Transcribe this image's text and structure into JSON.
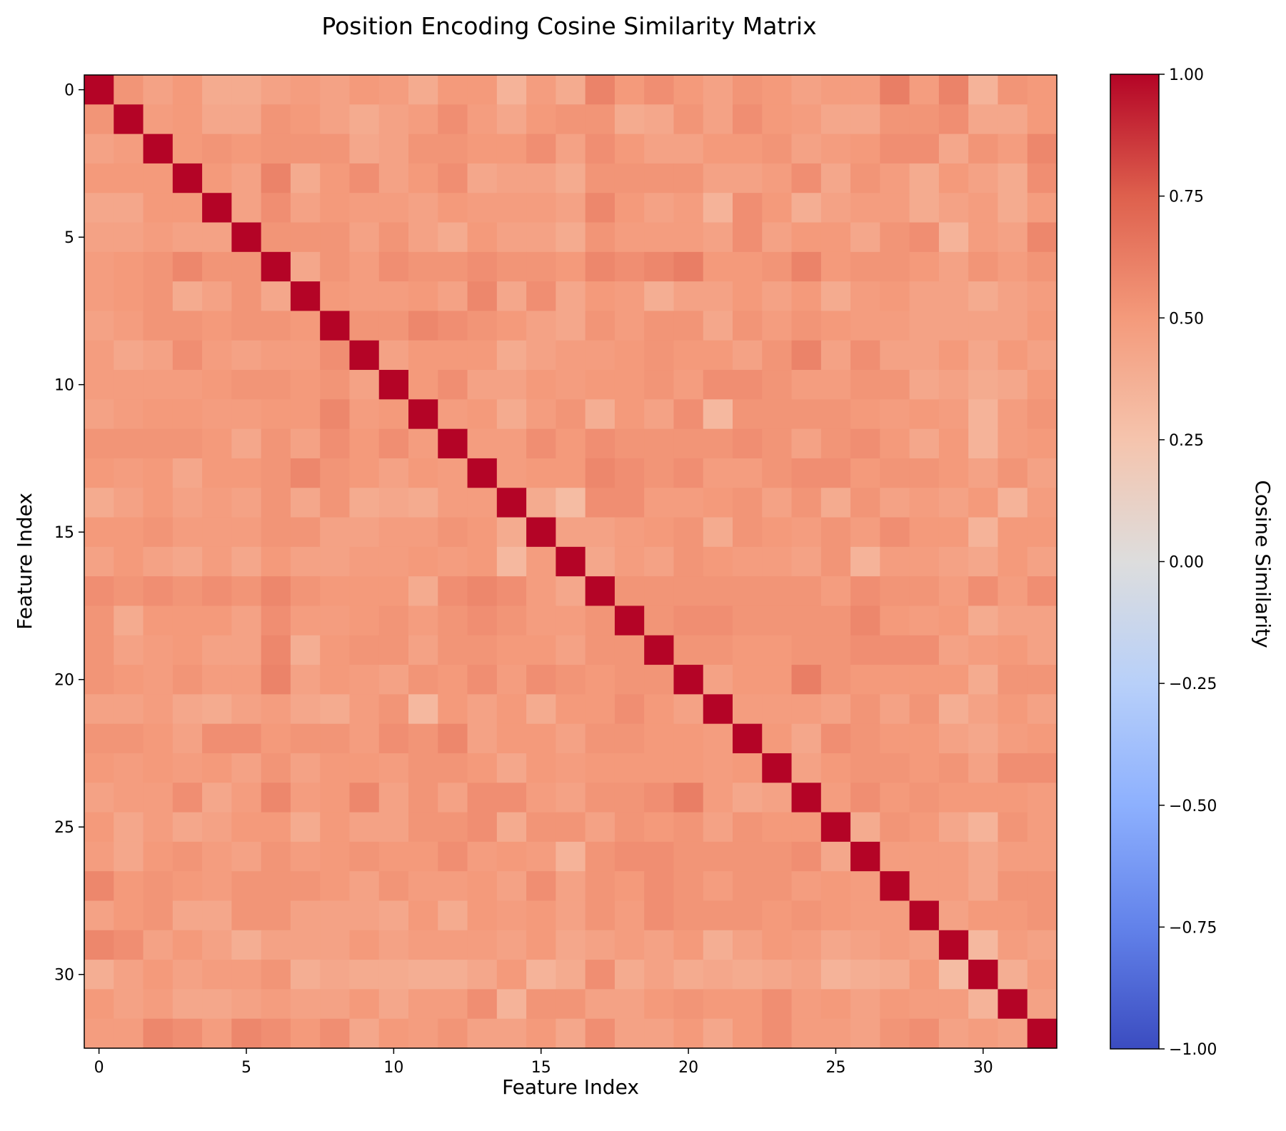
{
  "chart_data": {
    "type": "heatmap",
    "title": "Position Encoding Cosine Similarity Matrix",
    "xlabel": "Feature Index",
    "ylabel": "Feature Index",
    "n": 33,
    "x_ticks": [
      "0",
      "5",
      "10",
      "15",
      "20",
      "25",
      "30"
    ],
    "y_ticks": [
      "0",
      "5",
      "10",
      "15",
      "20",
      "25",
      "30"
    ],
    "x_tick_values": [
      0,
      5,
      10,
      15,
      20,
      25,
      30
    ],
    "y_tick_values": [
      0,
      5,
      10,
      15,
      20,
      25,
      30
    ],
    "colormap": "coolwarm",
    "vmin": -1.0,
    "vmax": 1.0,
    "colorbar": {
      "label": "Cosine Similarity",
      "ticks": [
        "1.00",
        "0.75",
        "0.50",
        "0.25",
        "0.00",
        "−0.25",
        "−0.50",
        "−0.75",
        "−1.00"
      ],
      "tick_values": [
        1.0,
        0.75,
        0.5,
        0.25,
        0.0,
        -0.25,
        -0.5,
        -0.75,
        -1.0
      ]
    },
    "values": [
      [
        1.0,
        0.52,
        0.45,
        0.5,
        0.4,
        0.4,
        0.45,
        0.48,
        0.45,
        0.5,
        0.48,
        0.4,
        0.5,
        0.5,
        0.35,
        0.48,
        0.4,
        0.6,
        0.5,
        0.55,
        0.5,
        0.45,
        0.52,
        0.5,
        0.45,
        0.48,
        0.48,
        0.62,
        0.48,
        0.6,
        0.35,
        0.52,
        0.5
      ],
      [
        0.52,
        1.0,
        0.48,
        0.5,
        0.42,
        0.42,
        0.52,
        0.5,
        0.45,
        0.4,
        0.45,
        0.48,
        0.55,
        0.48,
        0.42,
        0.5,
        0.52,
        0.52,
        0.4,
        0.42,
        0.52,
        0.45,
        0.55,
        0.5,
        0.48,
        0.42,
        0.42,
        0.52,
        0.52,
        0.55,
        0.42,
        0.42,
        0.5
      ],
      [
        0.45,
        0.48,
        1.0,
        0.5,
        0.52,
        0.5,
        0.52,
        0.52,
        0.52,
        0.42,
        0.45,
        0.52,
        0.52,
        0.5,
        0.5,
        0.55,
        0.45,
        0.55,
        0.5,
        0.45,
        0.45,
        0.5,
        0.5,
        0.52,
        0.45,
        0.48,
        0.5,
        0.55,
        0.55,
        0.42,
        0.52,
        0.48,
        0.58
      ],
      [
        0.5,
        0.5,
        0.5,
        1.0,
        0.5,
        0.45,
        0.6,
        0.4,
        0.5,
        0.55,
        0.45,
        0.5,
        0.55,
        0.42,
        0.45,
        0.45,
        0.4,
        0.52,
        0.52,
        0.52,
        0.52,
        0.45,
        0.45,
        0.48,
        0.55,
        0.42,
        0.52,
        0.48,
        0.4,
        0.5,
        0.45,
        0.4,
        0.55
      ],
      [
        0.42,
        0.42,
        0.5,
        0.5,
        1.0,
        0.45,
        0.55,
        0.45,
        0.5,
        0.48,
        0.48,
        0.45,
        0.5,
        0.48,
        0.48,
        0.48,
        0.45,
        0.58,
        0.5,
        0.45,
        0.48,
        0.35,
        0.55,
        0.5,
        0.38,
        0.45,
        0.48,
        0.48,
        0.4,
        0.45,
        0.48,
        0.4,
        0.48
      ],
      [
        0.45,
        0.45,
        0.48,
        0.45,
        0.45,
        1.0,
        0.52,
        0.52,
        0.52,
        0.45,
        0.52,
        0.45,
        0.4,
        0.5,
        0.45,
        0.45,
        0.4,
        0.52,
        0.48,
        0.48,
        0.48,
        0.45,
        0.55,
        0.45,
        0.5,
        0.5,
        0.42,
        0.52,
        0.55,
        0.35,
        0.48,
        0.45,
        0.58
      ],
      [
        0.48,
        0.5,
        0.52,
        0.58,
        0.52,
        0.52,
        1.0,
        0.42,
        0.52,
        0.48,
        0.55,
        0.52,
        0.52,
        0.55,
        0.52,
        0.52,
        0.5,
        0.58,
        0.55,
        0.58,
        0.62,
        0.5,
        0.5,
        0.52,
        0.6,
        0.5,
        0.52,
        0.52,
        0.5,
        0.45,
        0.52,
        0.48,
        0.52
      ],
      [
        0.48,
        0.5,
        0.52,
        0.4,
        0.45,
        0.52,
        0.42,
        1.0,
        0.5,
        0.48,
        0.48,
        0.5,
        0.45,
        0.58,
        0.42,
        0.55,
        0.42,
        0.5,
        0.48,
        0.38,
        0.45,
        0.45,
        0.5,
        0.45,
        0.5,
        0.4,
        0.48,
        0.5,
        0.45,
        0.45,
        0.4,
        0.45,
        0.48
      ],
      [
        0.45,
        0.48,
        0.52,
        0.52,
        0.5,
        0.52,
        0.52,
        0.5,
        1.0,
        0.52,
        0.52,
        0.58,
        0.55,
        0.52,
        0.5,
        0.45,
        0.42,
        0.52,
        0.48,
        0.52,
        0.52,
        0.42,
        0.52,
        0.48,
        0.52,
        0.5,
        0.48,
        0.48,
        0.45,
        0.45,
        0.45,
        0.45,
        0.5
      ],
      [
        0.48,
        0.42,
        0.45,
        0.55,
        0.48,
        0.45,
        0.48,
        0.48,
        0.55,
        1.0,
        0.45,
        0.5,
        0.5,
        0.5,
        0.4,
        0.45,
        0.48,
        0.48,
        0.5,
        0.52,
        0.5,
        0.5,
        0.45,
        0.52,
        0.6,
        0.45,
        0.55,
        0.45,
        0.45,
        0.5,
        0.42,
        0.5,
        0.45
      ],
      [
        0.48,
        0.48,
        0.48,
        0.48,
        0.5,
        0.52,
        0.52,
        0.5,
        0.52,
        0.45,
        1.0,
        0.5,
        0.55,
        0.45,
        0.45,
        0.5,
        0.48,
        0.5,
        0.5,
        0.52,
        0.48,
        0.55,
        0.55,
        0.52,
        0.48,
        0.48,
        0.52,
        0.52,
        0.42,
        0.45,
        0.4,
        0.42,
        0.5
      ],
      [
        0.45,
        0.48,
        0.5,
        0.5,
        0.48,
        0.48,
        0.5,
        0.5,
        0.58,
        0.48,
        0.5,
        1.0,
        0.48,
        0.5,
        0.4,
        0.48,
        0.52,
        0.38,
        0.5,
        0.45,
        0.55,
        0.32,
        0.52,
        0.52,
        0.52,
        0.52,
        0.5,
        0.48,
        0.5,
        0.48,
        0.35,
        0.48,
        0.52
      ],
      [
        0.52,
        0.52,
        0.52,
        0.52,
        0.5,
        0.42,
        0.52,
        0.45,
        0.55,
        0.5,
        0.55,
        0.48,
        1.0,
        0.48,
        0.48,
        0.55,
        0.5,
        0.55,
        0.52,
        0.52,
        0.52,
        0.52,
        0.55,
        0.52,
        0.45,
        0.52,
        0.55,
        0.5,
        0.42,
        0.5,
        0.35,
        0.48,
        0.5
      ],
      [
        0.5,
        0.48,
        0.5,
        0.42,
        0.5,
        0.5,
        0.52,
        0.58,
        0.52,
        0.5,
        0.45,
        0.5,
        0.48,
        1.0,
        0.48,
        0.5,
        0.5,
        0.58,
        0.55,
        0.52,
        0.55,
        0.48,
        0.48,
        0.52,
        0.55,
        0.55,
        0.5,
        0.52,
        0.52,
        0.5,
        0.45,
        0.52,
        0.45
      ],
      [
        0.4,
        0.45,
        0.5,
        0.45,
        0.48,
        0.45,
        0.52,
        0.42,
        0.52,
        0.4,
        0.42,
        0.4,
        0.48,
        0.48,
        1.0,
        0.4,
        0.3,
        0.55,
        0.55,
        0.48,
        0.48,
        0.5,
        0.52,
        0.45,
        0.52,
        0.4,
        0.52,
        0.45,
        0.48,
        0.45,
        0.5,
        0.35,
        0.48
      ],
      [
        0.5,
        0.5,
        0.52,
        0.48,
        0.48,
        0.48,
        0.52,
        0.52,
        0.45,
        0.45,
        0.48,
        0.48,
        0.52,
        0.5,
        0.4,
        1.0,
        0.45,
        0.45,
        0.48,
        0.5,
        0.52,
        0.4,
        0.52,
        0.5,
        0.48,
        0.52,
        0.48,
        0.55,
        0.5,
        0.5,
        0.35,
        0.5,
        0.5
      ],
      [
        0.45,
        0.5,
        0.45,
        0.42,
        0.48,
        0.42,
        0.5,
        0.45,
        0.45,
        0.48,
        0.48,
        0.5,
        0.48,
        0.5,
        0.32,
        0.48,
        1.0,
        0.42,
        0.48,
        0.45,
        0.52,
        0.5,
        0.48,
        0.48,
        0.45,
        0.52,
        0.35,
        0.48,
        0.48,
        0.45,
        0.42,
        0.5,
        0.45
      ],
      [
        0.55,
        0.52,
        0.55,
        0.52,
        0.55,
        0.52,
        0.58,
        0.52,
        0.5,
        0.5,
        0.5,
        0.4,
        0.55,
        0.58,
        0.55,
        0.48,
        0.42,
        1.0,
        0.52,
        0.52,
        0.52,
        0.52,
        0.52,
        0.52,
        0.52,
        0.48,
        0.55,
        0.52,
        0.52,
        0.48,
        0.55,
        0.48,
        0.55
      ],
      [
        0.52,
        0.4,
        0.5,
        0.5,
        0.5,
        0.45,
        0.55,
        0.48,
        0.48,
        0.5,
        0.52,
        0.48,
        0.52,
        0.55,
        0.52,
        0.48,
        0.48,
        0.52,
        1.0,
        0.52,
        0.55,
        0.55,
        0.52,
        0.52,
        0.52,
        0.52,
        0.58,
        0.5,
        0.48,
        0.5,
        0.4,
        0.45,
        0.45
      ],
      [
        0.52,
        0.45,
        0.48,
        0.5,
        0.45,
        0.45,
        0.58,
        0.38,
        0.5,
        0.52,
        0.52,
        0.45,
        0.52,
        0.52,
        0.5,
        0.5,
        0.45,
        0.52,
        0.52,
        1.0,
        0.52,
        0.52,
        0.5,
        0.5,
        0.52,
        0.52,
        0.55,
        0.55,
        0.55,
        0.45,
        0.48,
        0.5,
        0.45
      ],
      [
        0.52,
        0.5,
        0.48,
        0.52,
        0.48,
        0.48,
        0.6,
        0.45,
        0.5,
        0.48,
        0.45,
        0.52,
        0.5,
        0.55,
        0.48,
        0.55,
        0.52,
        0.5,
        0.52,
        0.52,
        1.0,
        0.45,
        0.5,
        0.5,
        0.62,
        0.52,
        0.5,
        0.5,
        0.5,
        0.5,
        0.4,
        0.52,
        0.52
      ],
      [
        0.45,
        0.45,
        0.48,
        0.42,
        0.4,
        0.45,
        0.48,
        0.42,
        0.4,
        0.48,
        0.52,
        0.32,
        0.5,
        0.45,
        0.5,
        0.4,
        0.5,
        0.5,
        0.55,
        0.5,
        0.45,
        1.0,
        0.48,
        0.48,
        0.48,
        0.45,
        0.52,
        0.45,
        0.52,
        0.38,
        0.45,
        0.5,
        0.45
      ],
      [
        0.52,
        0.52,
        0.5,
        0.45,
        0.55,
        0.55,
        0.5,
        0.52,
        0.52,
        0.48,
        0.55,
        0.52,
        0.58,
        0.45,
        0.5,
        0.5,
        0.45,
        0.52,
        0.52,
        0.5,
        0.5,
        0.48,
        1.0,
        0.5,
        0.42,
        0.55,
        0.52,
        0.5,
        0.5,
        0.45,
        0.42,
        0.48,
        0.5
      ],
      [
        0.5,
        0.48,
        0.5,
        0.48,
        0.5,
        0.45,
        0.52,
        0.45,
        0.5,
        0.5,
        0.48,
        0.52,
        0.52,
        0.5,
        0.42,
        0.5,
        0.48,
        0.5,
        0.5,
        0.5,
        0.5,
        0.48,
        0.5,
        1.0,
        0.45,
        0.5,
        0.52,
        0.52,
        0.5,
        0.52,
        0.45,
        0.55,
        0.55
      ],
      [
        0.45,
        0.48,
        0.48,
        0.55,
        0.42,
        0.48,
        0.58,
        0.48,
        0.5,
        0.58,
        0.45,
        0.52,
        0.45,
        0.55,
        0.55,
        0.48,
        0.45,
        0.52,
        0.52,
        0.55,
        0.62,
        0.48,
        0.42,
        0.45,
        1.0,
        0.48,
        0.55,
        0.5,
        0.52,
        0.5,
        0.5,
        0.5,
        0.48
      ],
      [
        0.5,
        0.42,
        0.48,
        0.42,
        0.45,
        0.5,
        0.5,
        0.4,
        0.5,
        0.45,
        0.45,
        0.52,
        0.52,
        0.55,
        0.4,
        0.52,
        0.52,
        0.45,
        0.52,
        0.5,
        0.52,
        0.45,
        0.52,
        0.5,
        0.5,
        1.0,
        0.4,
        0.52,
        0.5,
        0.42,
        0.35,
        0.52,
        0.48
      ],
      [
        0.48,
        0.42,
        0.5,
        0.52,
        0.48,
        0.45,
        0.52,
        0.48,
        0.5,
        0.52,
        0.5,
        0.5,
        0.55,
        0.48,
        0.5,
        0.48,
        0.35,
        0.52,
        0.55,
        0.55,
        0.52,
        0.52,
        0.52,
        0.52,
        0.55,
        0.42,
        1.0,
        0.48,
        0.48,
        0.48,
        0.42,
        0.48,
        0.48
      ],
      [
        0.58,
        0.5,
        0.52,
        0.5,
        0.48,
        0.52,
        0.52,
        0.52,
        0.5,
        0.45,
        0.52,
        0.48,
        0.48,
        0.5,
        0.45,
        0.55,
        0.45,
        0.52,
        0.5,
        0.55,
        0.52,
        0.48,
        0.52,
        0.52,
        0.48,
        0.5,
        0.48,
        1.0,
        0.48,
        0.48,
        0.42,
        0.52,
        0.52
      ],
      [
        0.45,
        0.5,
        0.52,
        0.42,
        0.42,
        0.52,
        0.52,
        0.45,
        0.45,
        0.45,
        0.42,
        0.5,
        0.4,
        0.5,
        0.48,
        0.5,
        0.45,
        0.52,
        0.48,
        0.55,
        0.52,
        0.52,
        0.52,
        0.5,
        0.52,
        0.5,
        0.48,
        0.48,
        1.0,
        0.45,
        0.5,
        0.5,
        0.52
      ],
      [
        0.58,
        0.55,
        0.45,
        0.5,
        0.45,
        0.38,
        0.45,
        0.45,
        0.45,
        0.5,
        0.45,
        0.48,
        0.48,
        0.48,
        0.45,
        0.5,
        0.42,
        0.45,
        0.48,
        0.45,
        0.5,
        0.38,
        0.45,
        0.5,
        0.48,
        0.42,
        0.45,
        0.48,
        0.45,
        1.0,
        0.32,
        0.48,
        0.45
      ],
      [
        0.38,
        0.45,
        0.5,
        0.45,
        0.48,
        0.48,
        0.52,
        0.38,
        0.42,
        0.4,
        0.4,
        0.38,
        0.38,
        0.42,
        0.5,
        0.35,
        0.4,
        0.55,
        0.4,
        0.45,
        0.4,
        0.42,
        0.4,
        0.42,
        0.45,
        0.35,
        0.38,
        0.4,
        0.5,
        0.3,
        1.0,
        0.38,
        0.48
      ],
      [
        0.5,
        0.45,
        0.48,
        0.42,
        0.42,
        0.45,
        0.48,
        0.45,
        0.45,
        0.5,
        0.42,
        0.48,
        0.48,
        0.55,
        0.35,
        0.52,
        0.52,
        0.45,
        0.45,
        0.5,
        0.52,
        0.5,
        0.5,
        0.55,
        0.48,
        0.5,
        0.45,
        0.5,
        0.48,
        0.48,
        0.35,
        1.0,
        0.45
      ],
      [
        0.48,
        0.48,
        0.58,
        0.55,
        0.48,
        0.58,
        0.55,
        0.5,
        0.55,
        0.42,
        0.5,
        0.48,
        0.52,
        0.45,
        0.45,
        0.5,
        0.42,
        0.55,
        0.45,
        0.45,
        0.5,
        0.42,
        0.5,
        0.55,
        0.48,
        0.48,
        0.45,
        0.52,
        0.55,
        0.45,
        0.48,
        0.45,
        1.0
      ]
    ]
  }
}
